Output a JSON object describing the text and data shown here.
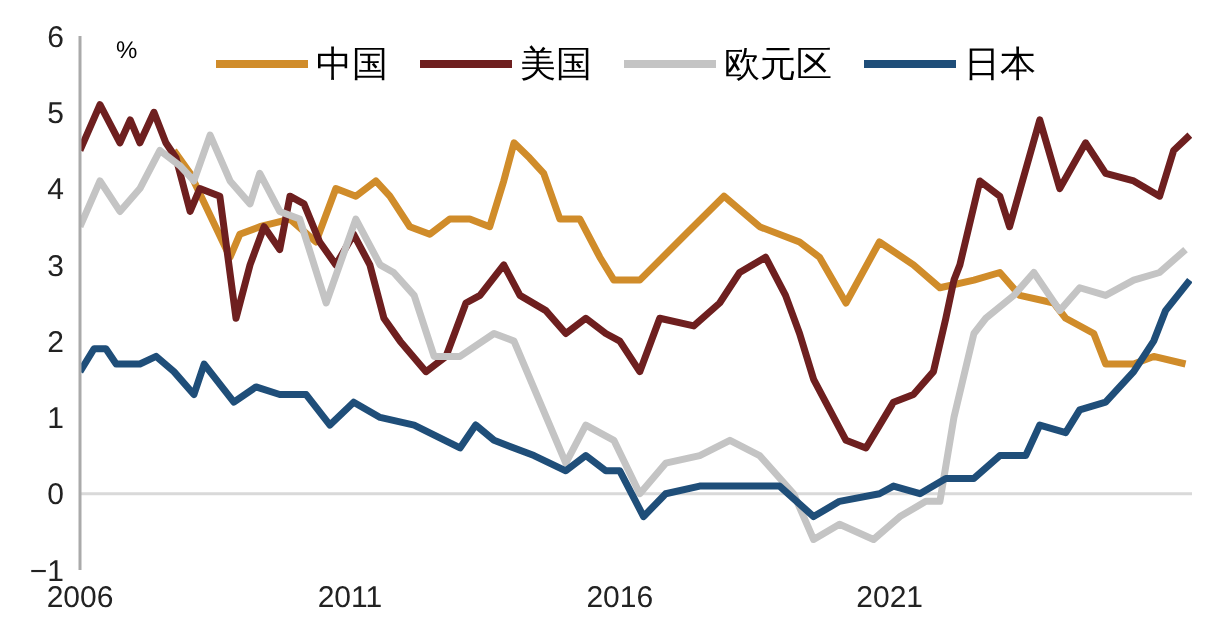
{
  "chart_data": {
    "type": "line",
    "ylabel": "%",
    "xlim": [
      2006,
      2026.6
    ],
    "xticks": [
      2006,
      2011,
      2016,
      2021
    ],
    "ylim": [
      -1,
      6
    ],
    "yticks": [
      {
        "value": -1,
        "label": "−1"
      },
      0,
      1,
      2,
      3,
      4,
      5,
      6
    ],
    "grid": false,
    "legend": "top",
    "marker": "none",
    "line_style": "solid",
    "ref_lines": [
      {
        "axis": "y",
        "value": 0,
        "color": "#d9d9d9"
      }
    ],
    "series": [
      {
        "name": "中国",
        "color": "#d08c2a",
        "x": [
          2007.74,
          2008.04,
          2008.78,
          2008.96,
          2009.33,
          2009.89,
          2010.37,
          2010.74,
          2011.11,
          2011.48,
          2011.74,
          2012.11,
          2012.48,
          2012.85,
          2013.22,
          2013.59,
          2013.85,
          2014.04,
          2014.33,
          2014.59,
          2014.89,
          2015.26,
          2015.63,
          2015.89,
          2016.37,
          2017.22,
          2017.93,
          2018.59,
          2019.33,
          2019.7,
          2020.19,
          2020.81,
          2021.44,
          2021.93,
          2022.56,
          2023.04,
          2023.41,
          2024.04,
          2024.26,
          2024.78,
          2025.0,
          2025.52,
          2025.89,
          2026.48
        ],
        "values": [
          4.5,
          4.2,
          3.1,
          3.4,
          3.5,
          3.6,
          3.3,
          4.0,
          3.9,
          4.1,
          3.9,
          3.5,
          3.4,
          3.6,
          3.6,
          3.5,
          4.1,
          4.6,
          4.4,
          4.2,
          3.6,
          3.6,
          3.1,
          2.8,
          2.8,
          3.4,
          3.9,
          3.5,
          3.3,
          3.1,
          2.5,
          3.3,
          3.0,
          2.7,
          2.8,
          2.9,
          2.6,
          2.5,
          2.3,
          2.1,
          1.7,
          1.7,
          1.8,
          1.7
        ]
      },
      {
        "name": "美国",
        "color": "#6e1f1f",
        "x": [
          2006.0,
          2006.37,
          2006.74,
          2006.93,
          2007.11,
          2007.37,
          2007.59,
          2007.78,
          2008.04,
          2008.22,
          2008.59,
          2008.89,
          2009.15,
          2009.41,
          2009.7,
          2009.89,
          2010.15,
          2010.44,
          2010.74,
          2011.07,
          2011.37,
          2011.63,
          2011.93,
          2012.41,
          2012.78,
          2013.15,
          2013.41,
          2013.85,
          2014.15,
          2014.63,
          2015.0,
          2015.37,
          2015.74,
          2016.0,
          2016.37,
          2016.74,
          2017.37,
          2017.85,
          2018.22,
          2018.7,
          2019.07,
          2019.33,
          2019.59,
          2020.19,
          2020.56,
          2021.07,
          2021.44,
          2021.81,
          2022.04,
          2022.19,
          2022.3,
          2022.67,
          2023.04,
          2023.22,
          2023.78,
          2024.15,
          2024.63,
          2025.0,
          2025.52,
          2026.0,
          2026.26,
          2026.56
        ],
        "values": [
          4.5,
          5.1,
          4.6,
          4.9,
          4.6,
          5.0,
          4.6,
          4.4,
          3.7,
          4.0,
          3.9,
          2.3,
          3.0,
          3.5,
          3.2,
          3.9,
          3.8,
          3.3,
          3.0,
          3.4,
          3.0,
          2.3,
          2.0,
          1.6,
          1.8,
          2.5,
          2.6,
          3.0,
          2.6,
          2.4,
          2.1,
          2.3,
          2.1,
          2.0,
          1.6,
          2.3,
          2.2,
          2.5,
          2.9,
          3.1,
          2.6,
          2.1,
          1.5,
          0.7,
          0.6,
          1.2,
          1.3,
          1.6,
          2.3,
          2.8,
          3.0,
          4.1,
          3.9,
          3.5,
          4.9,
          4.0,
          4.6,
          4.2,
          4.1,
          3.9,
          4.5,
          4.7
        ]
      },
      {
        "name": "欧元区",
        "color": "#c4c4c4",
        "x": [
          2006.0,
          2006.37,
          2006.74,
          2007.11,
          2007.48,
          2007.85,
          2008.11,
          2008.41,
          2008.78,
          2009.15,
          2009.33,
          2009.7,
          2010.07,
          2010.56,
          2011.11,
          2011.56,
          2011.81,
          2012.19,
          2012.56,
          2013.04,
          2013.67,
          2014.04,
          2015.0,
          2015.37,
          2015.89,
          2016.37,
          2016.85,
          2017.48,
          2018.04,
          2018.59,
          2019.22,
          2019.59,
          2020.07,
          2020.7,
          2021.19,
          2021.67,
          2021.93,
          2022.19,
          2022.56,
          2022.78,
          2023.3,
          2023.67,
          2024.15,
          2024.52,
          2025.0,
          2025.52,
          2026.0,
          2026.48
        ],
        "values": [
          3.5,
          4.1,
          3.7,
          4.0,
          4.5,
          4.3,
          4.1,
          4.7,
          4.1,
          3.8,
          4.2,
          3.7,
          3.6,
          2.5,
          3.6,
          3.0,
          2.9,
          2.6,
          1.8,
          1.8,
          2.1,
          2.0,
          0.4,
          0.9,
          0.7,
          0.0,
          0.4,
          0.5,
          0.7,
          0.5,
          0.0,
          -0.6,
          -0.4,
          -0.6,
          -0.3,
          -0.1,
          -0.1,
          1.0,
          2.1,
          2.3,
          2.6,
          2.9,
          2.4,
          2.7,
          2.6,
          2.8,
          2.9,
          3.2
        ]
      },
      {
        "name": "日本",
        "color": "#1f4e79",
        "x": [
          2006.0,
          2006.26,
          2006.48,
          2006.67,
          2007.11,
          2007.41,
          2007.74,
          2008.11,
          2008.3,
          2008.85,
          2009.26,
          2009.7,
          2010.19,
          2010.63,
          2011.07,
          2011.56,
          2012.19,
          2013.04,
          2013.33,
          2013.67,
          2014.41,
          2015.0,
          2015.37,
          2015.74,
          2016.0,
          2016.44,
          2016.85,
          2017.48,
          2018.59,
          2018.96,
          2019.59,
          2020.07,
          2020.81,
          2021.07,
          2021.56,
          2022.04,
          2022.56,
          2023.04,
          2023.52,
          2023.78,
          2024.26,
          2024.52,
          2025.0,
          2025.52,
          2025.89,
          2026.0,
          2026.11,
          2026.56
        ],
        "values": [
          1.6,
          1.9,
          1.9,
          1.7,
          1.7,
          1.8,
          1.6,
          1.3,
          1.7,
          1.2,
          1.4,
          1.3,
          1.3,
          0.9,
          1.2,
          1.0,
          0.9,
          0.6,
          0.9,
          0.7,
          0.5,
          0.3,
          0.5,
          0.3,
          0.3,
          -0.3,
          0.0,
          0.1,
          0.1,
          0.1,
          -0.3,
          -0.1,
          0.0,
          0.1,
          0.0,
          0.2,
          0.2,
          0.5,
          0.5,
          0.9,
          0.8,
          1.1,
          1.2,
          1.6,
          2.0,
          2.2,
          2.4,
          2.8
        ]
      }
    ]
  }
}
